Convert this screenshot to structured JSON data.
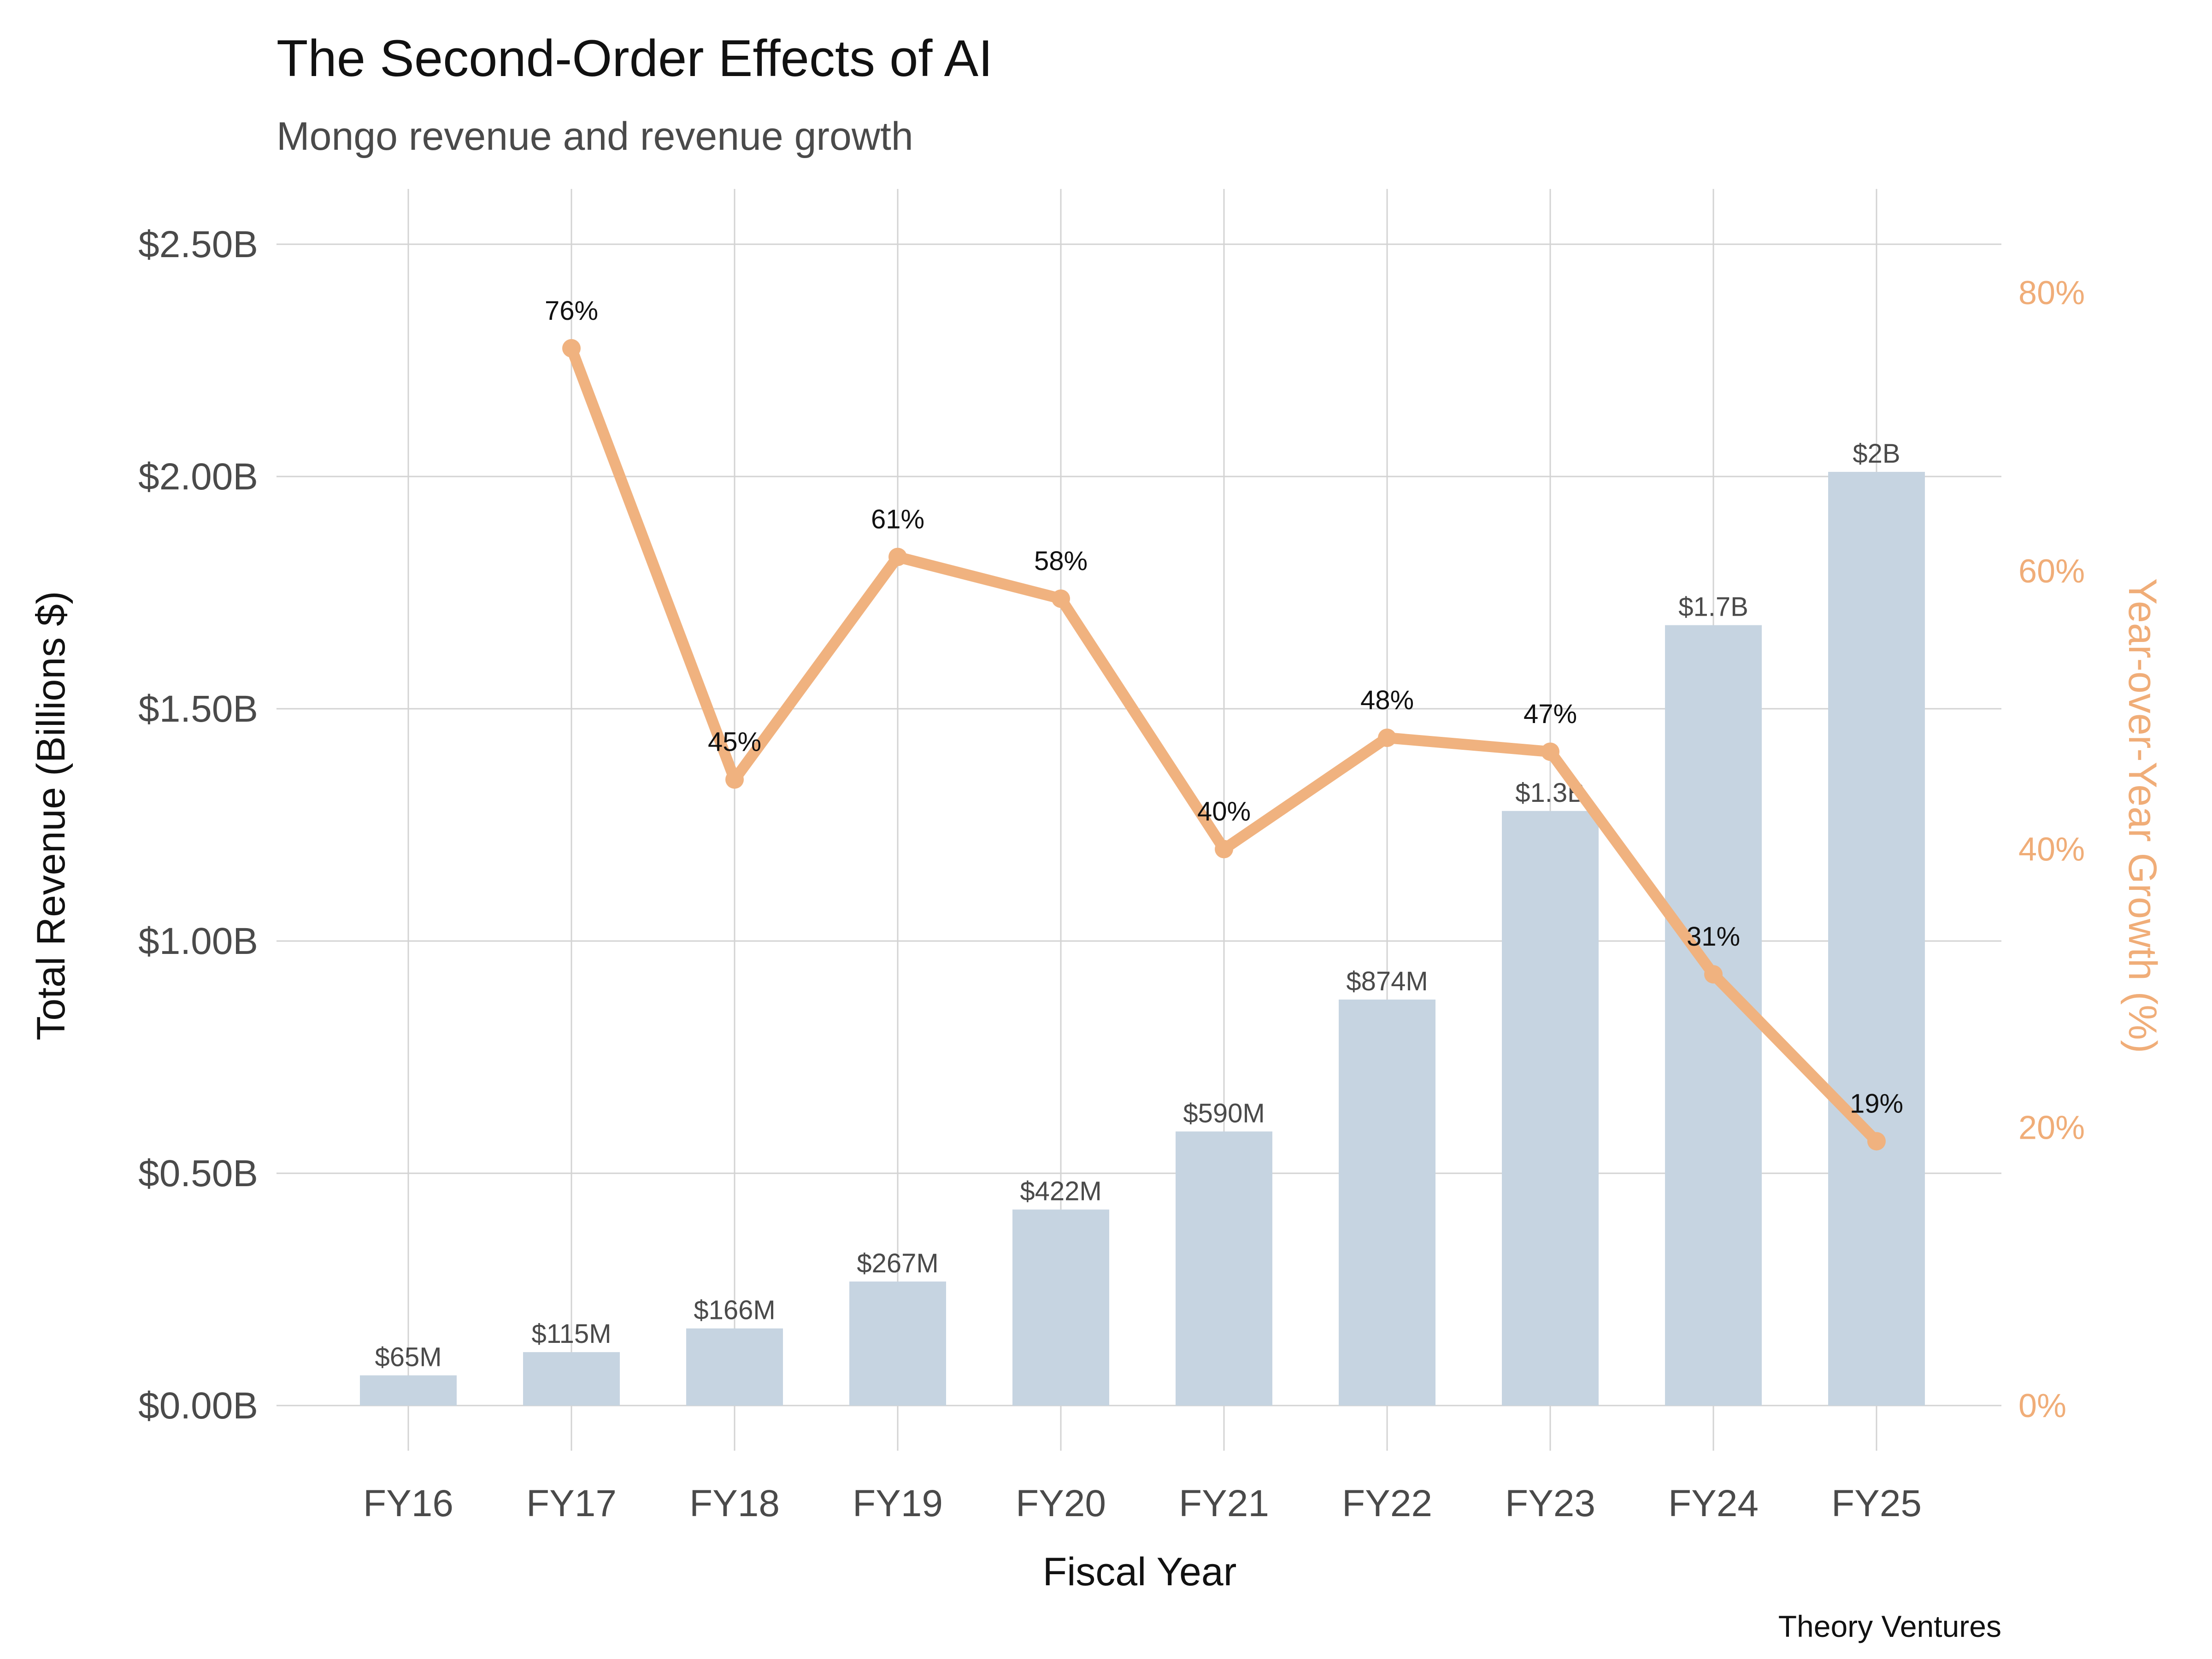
{
  "chart_data": {
    "type": "bar",
    "title": "The Second-Order Effects of AI",
    "subtitle": "Mongo revenue and revenue growth",
    "xlabel": "Fiscal Year",
    "ylabel": "Total Revenue (Billions $)",
    "ylabel_right": "Year-over-Year Growth (%)",
    "caption": "Theory Ventures",
    "categories": [
      "FY16",
      "FY17",
      "FY18",
      "FY19",
      "FY20",
      "FY21",
      "FY22",
      "FY23",
      "FY24",
      "FY25"
    ],
    "ylim": [
      0,
      2.5
    ],
    "y_ticks": [
      0,
      0.5,
      1.0,
      1.5,
      2.0,
      2.5
    ],
    "y_tick_labels": [
      "$0.00B",
      "$0.50B",
      "$1.00B",
      "$1.50B",
      "$2.00B",
      "$2.50B"
    ],
    "y2lim": [
      0,
      80
    ],
    "y2_ticks": [
      0,
      20,
      40,
      60,
      80
    ],
    "y2_tick_labels": [
      "0%",
      "20%",
      "40%",
      "60%",
      "80%"
    ],
    "grid": true,
    "series": [
      {
        "type": "bar",
        "axis": "left",
        "values": [
          0.065,
          0.115,
          0.166,
          0.267,
          0.422,
          0.59,
          0.874,
          1.28,
          1.68,
          2.01
        ],
        "labels": [
          "$65M",
          "$115M",
          "$166M",
          "$267M",
          "$422M",
          "$590M",
          "$874M",
          "$1.3B",
          "$1.7B",
          "$2B"
        ],
        "color": "#c6d4e1"
      },
      {
        "type": "line",
        "axis": "right",
        "x": [
          "FY17",
          "FY18",
          "FY19",
          "FY20",
          "FY21",
          "FY22",
          "FY23",
          "FY24",
          "FY25"
        ],
        "values": [
          76,
          45,
          61,
          58,
          40,
          48,
          47,
          31,
          19
        ],
        "labels": [
          "76%",
          "45%",
          "61%",
          "58%",
          "40%",
          "48%",
          "47%",
          "31%",
          "19%"
        ],
        "color": "#f0b27f"
      }
    ],
    "colors": {
      "grid": "#d3d3d3",
      "right_axis": "#f0ad78",
      "text": "#111111",
      "muted_text": "#4a4a4a"
    }
  }
}
